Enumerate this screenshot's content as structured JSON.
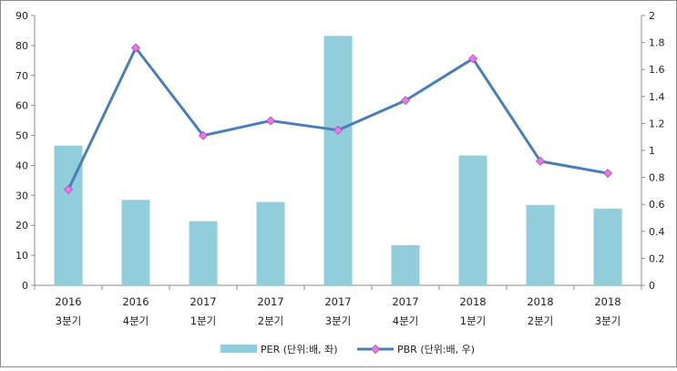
{
  "chart_data": {
    "type": "bar+line",
    "categories": [
      [
        "2016",
        "3분기"
      ],
      [
        "2016",
        "4분기"
      ],
      [
        "2017",
        "1분기"
      ],
      [
        "2017",
        "2분기"
      ],
      [
        "2017",
        "3분기"
      ],
      [
        "2017",
        "4분기"
      ],
      [
        "2018",
        "1분기"
      ],
      [
        "2018",
        "2분기"
      ],
      [
        "2018",
        "3분기"
      ]
    ],
    "series": [
      {
        "name": "PER (단위:배, 좌)",
        "type": "bar",
        "axis": "left",
        "color": "#92cddc",
        "values": [
          46.6,
          28.5,
          21.4,
          27.8,
          83.2,
          13.4,
          43.3,
          26.8,
          25.6
        ]
      },
      {
        "name": "PBR (단위:배, 우)",
        "type": "line",
        "axis": "right",
        "color": "#4a7ebb",
        "marker_color": "#e879e8",
        "values": [
          0.71,
          1.76,
          1.11,
          1.22,
          1.15,
          1.37,
          1.68,
          0.92,
          0.83
        ]
      }
    ],
    "y_left": {
      "min": 0,
      "max": 90,
      "ticks": [
        "0",
        "10",
        "20",
        "30",
        "40",
        "50",
        "60",
        "70",
        "80",
        "90"
      ]
    },
    "y_right": {
      "min": 0,
      "max": 2,
      "ticks": [
        "0",
        "0.2",
        "0.4",
        "0.6",
        "0.8",
        "1",
        "1.2",
        "1.4",
        "1.6",
        "1.8",
        "2"
      ]
    },
    "legend_position": "bottom",
    "grid": false
  }
}
